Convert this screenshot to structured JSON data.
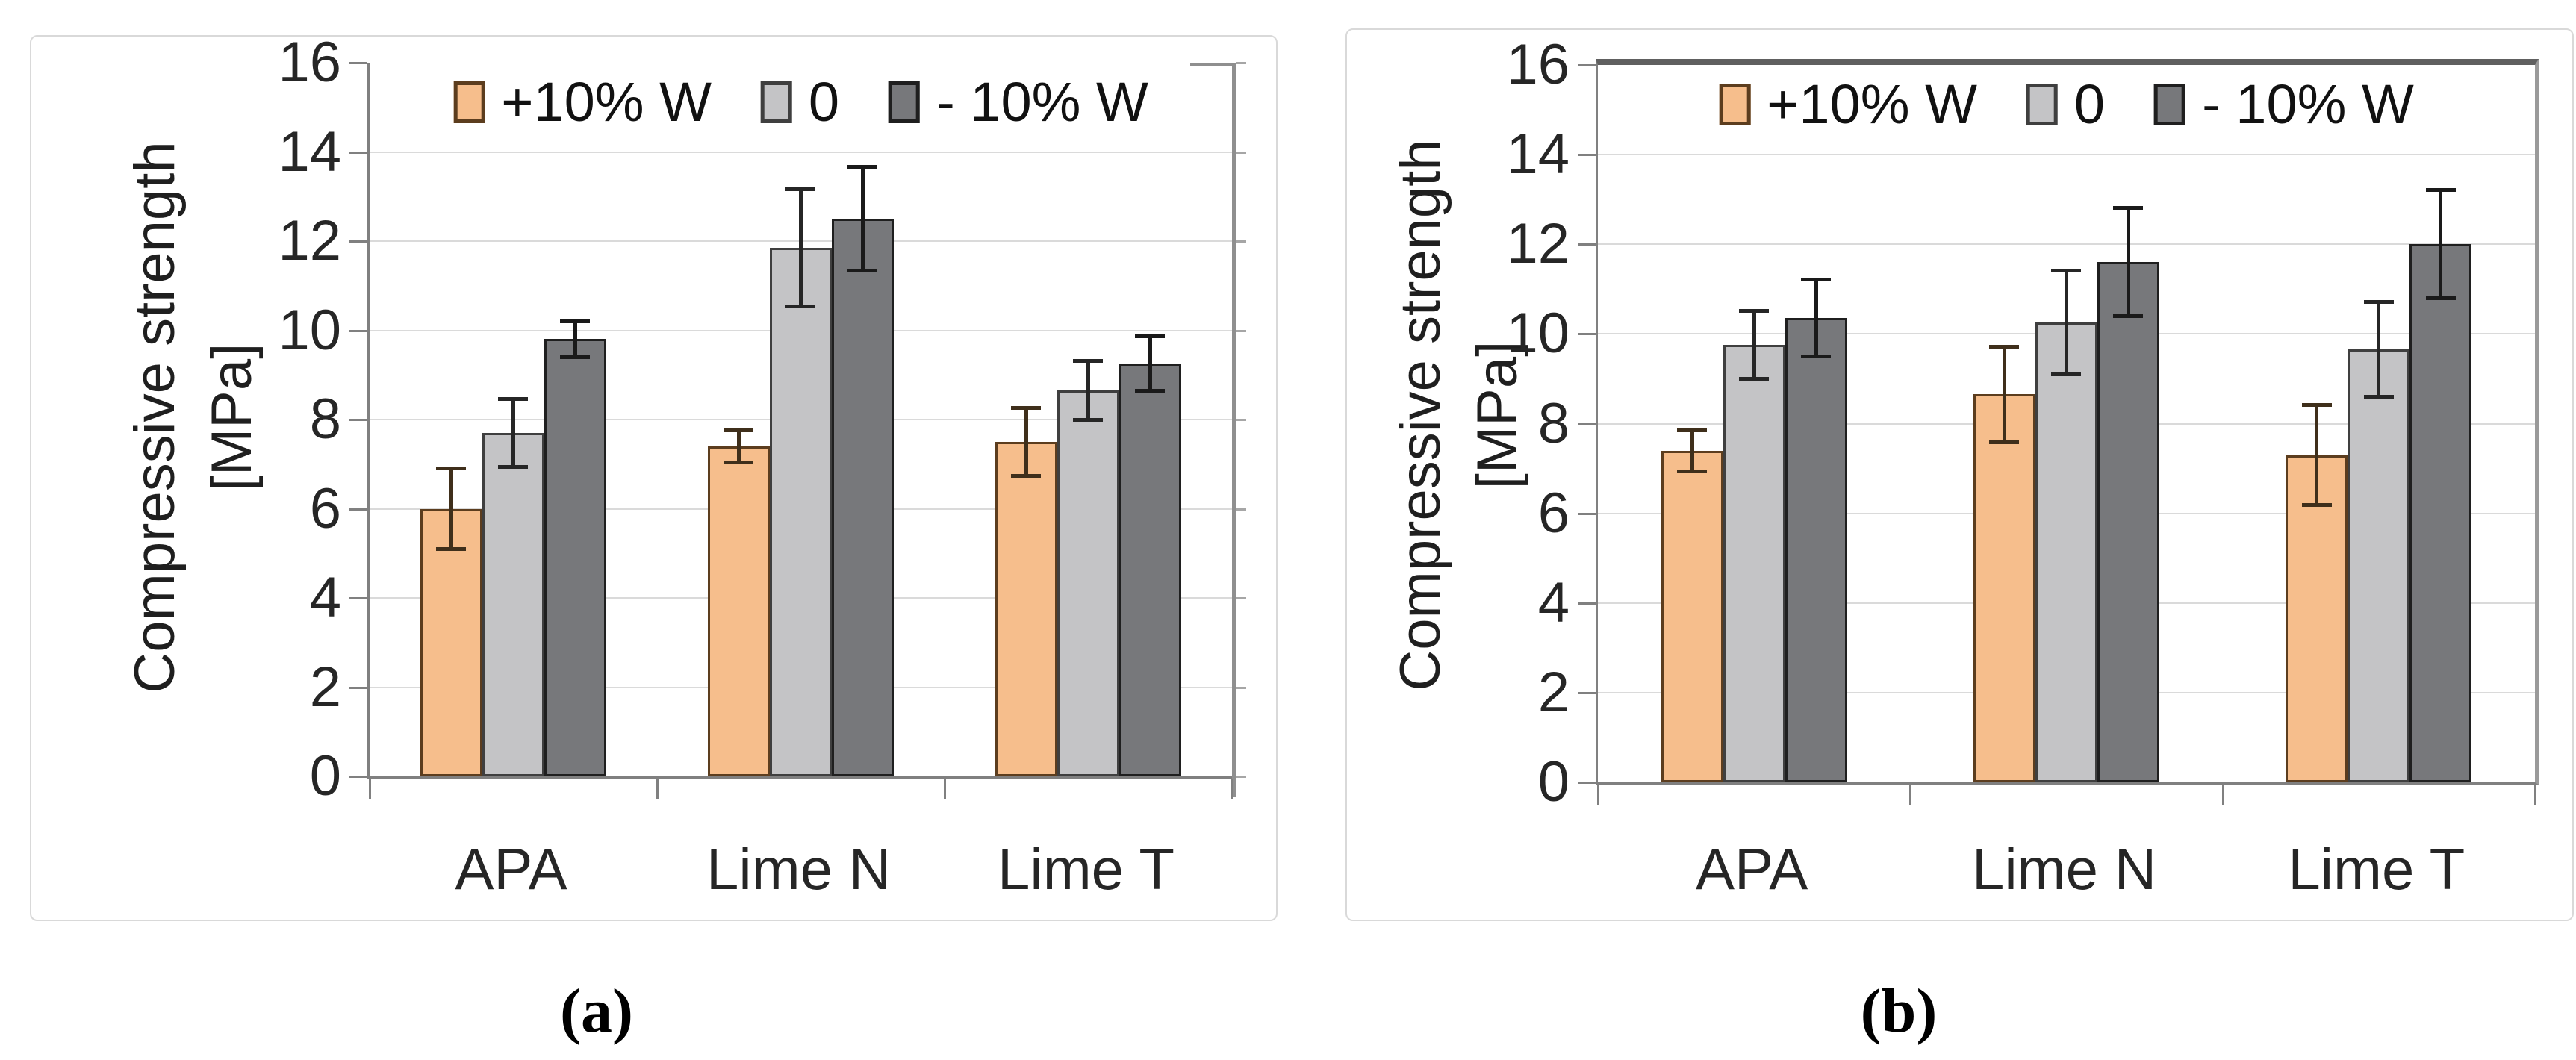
{
  "figure": {
    "background": "#ffffff",
    "panel_border_color": "#d9d9d9",
    "axis_color": "#808080",
    "gridline_color": "#dadada"
  },
  "chart_data": [
    {
      "id": "a",
      "type": "bar",
      "caption": "(a)",
      "title": "",
      "xlabel": "",
      "ylabel": "Compressive strength [MPa]",
      "ylabel_lines": [
        "Compressive strength",
        "[MPa]"
      ],
      "ylim": [
        0,
        16
      ],
      "ytick_step": 2,
      "yticks": [
        0,
        2,
        4,
        6,
        8,
        10,
        12,
        14,
        16
      ],
      "grid": true,
      "legend_position": "top-inside",
      "right_axis": "ticks",
      "categories": [
        "APA",
        "Lime N",
        "Lime T"
      ],
      "series": [
        {
          "name": "+10% W",
          "fill": "#F6BE8C",
          "border": "#5C3D1E",
          "err_color": "#3F2F1B",
          "values": [
            6.0,
            7.4,
            7.5
          ],
          "errors": [
            0.95,
            0.4,
            0.8
          ]
        },
        {
          "name": "0",
          "fill": "#C4C4C6",
          "border": "#3F3F3F",
          "err_color": "#262626",
          "values": [
            7.7,
            11.85,
            8.65
          ],
          "errors": [
            0.8,
            1.35,
            0.7
          ]
        },
        {
          "name": "- 10% W",
          "fill": "#77787B",
          "border": "#1F1F1F",
          "err_color": "#1A1A1A",
          "values": [
            9.8,
            12.5,
            9.25
          ],
          "errors": [
            0.45,
            1.2,
            0.65
          ]
        }
      ]
    },
    {
      "id": "b",
      "type": "bar",
      "caption": "(b)",
      "title": "",
      "xlabel": "",
      "ylabel": "Compressive strength [MPa]",
      "ylabel_lines": [
        "Compressive strength",
        "[MPa]"
      ],
      "ylim": [
        0,
        16
      ],
      "ytick_step": 2,
      "yticks": [
        0,
        2,
        4,
        6,
        8,
        10,
        12,
        14,
        16
      ],
      "grid": true,
      "legend_position": "top-inside",
      "right_axis": "line",
      "categories": [
        "APA",
        "Lime N",
        "Lime T"
      ],
      "series": [
        {
          "name": "+10% W",
          "fill": "#F6BE8C",
          "border": "#5C3D1E",
          "err_color": "#3F2F1B",
          "values": [
            7.4,
            8.65,
            7.3
          ],
          "errors": [
            0.5,
            1.1,
            1.15
          ]
        },
        {
          "name": "0",
          "fill": "#C4C4C6",
          "border": "#3F3F3F",
          "err_color": "#262626",
          "values": [
            9.75,
            10.25,
            9.65
          ],
          "errors": [
            0.8,
            1.2,
            1.1
          ]
        },
        {
          "name": "- 10% W",
          "fill": "#77787B",
          "border": "#1F1F1F",
          "err_color": "#1A1A1A",
          "values": [
            10.35,
            11.6,
            12.0
          ],
          "errors": [
            0.9,
            1.25,
            1.25
          ]
        }
      ]
    }
  ]
}
